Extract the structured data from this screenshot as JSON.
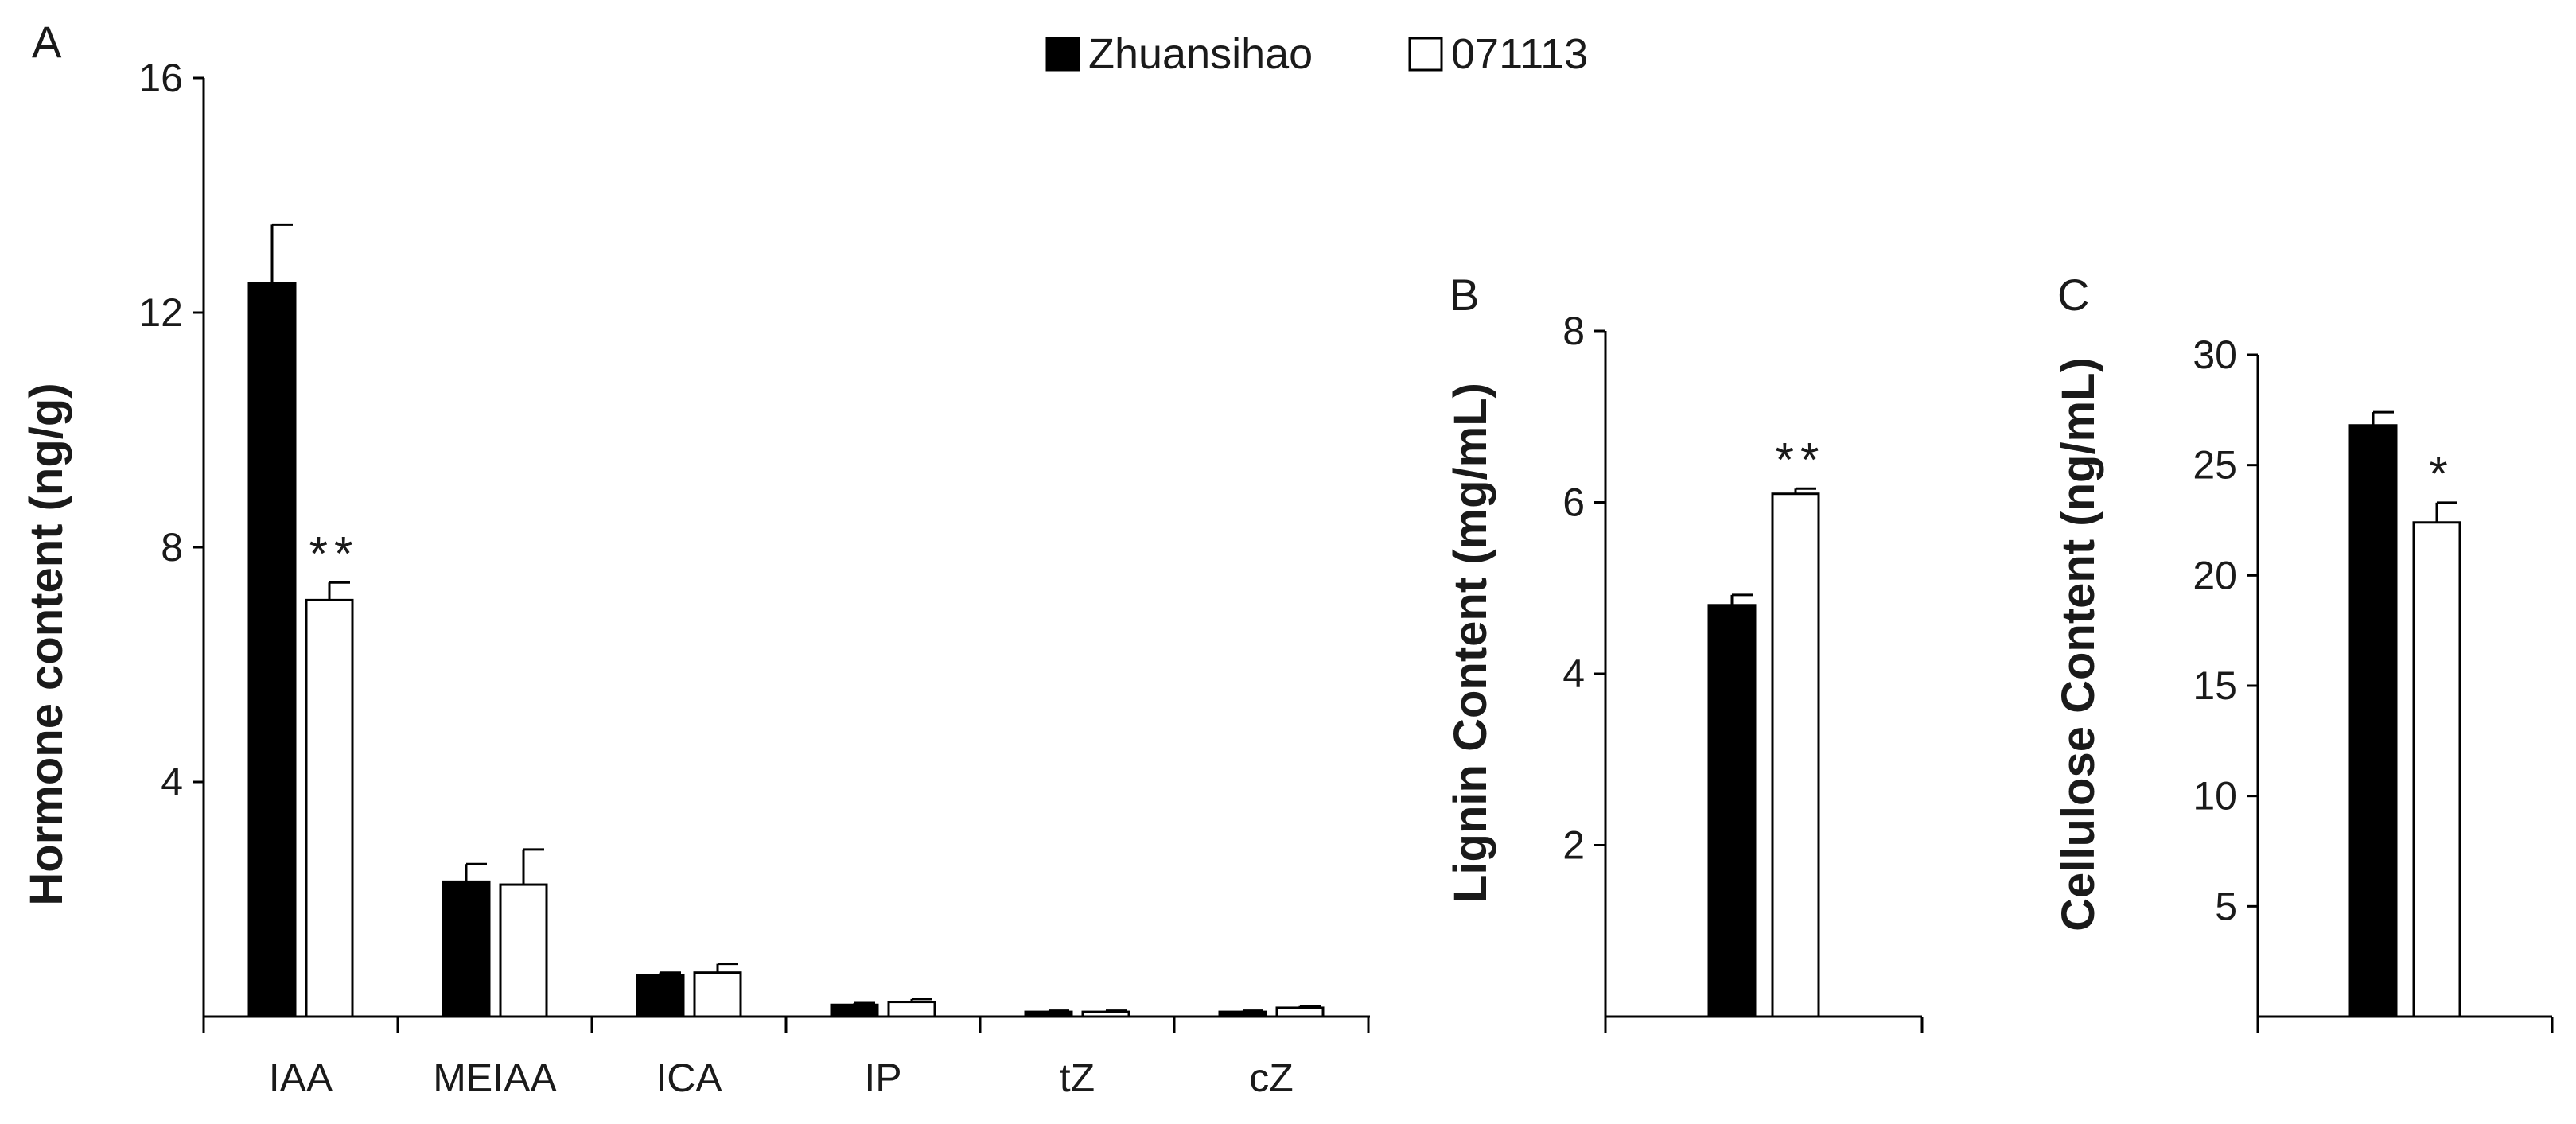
{
  "legend": {
    "items": [
      {
        "label": "Zhuansihao",
        "fill": "#000000"
      },
      {
        "label": "071113",
        "fill": "#ffffff"
      }
    ]
  },
  "colors": {
    "series1": "#000000",
    "series2": "#ffffff",
    "stroke": "#000000"
  },
  "chart_data": [
    {
      "panel": "A",
      "type": "bar",
      "ylabel": "Hormone content (ng/g)",
      "ylim": [
        0,
        16
      ],
      "yticks": [
        "4",
        "8",
        "12",
        "16"
      ],
      "categories": [
        "IAA",
        "MEIAA",
        "ICA",
        "IP",
        "tZ",
        "cZ"
      ],
      "series": [
        {
          "name": "Zhuansihao",
          "values": [
            12.5,
            2.3,
            0.7,
            0.2,
            0.08,
            0.08
          ],
          "errors": [
            1.0,
            0.3,
            0.05,
            0.03,
            0.02,
            0.02
          ]
        },
        {
          "name": "071113",
          "values": [
            7.1,
            2.25,
            0.75,
            0.25,
            0.08,
            0.15
          ],
          "errors": [
            0.3,
            0.6,
            0.15,
            0.05,
            0.02,
            0.03
          ]
        }
      ],
      "annotations": [
        {
          "category": "IAA",
          "series": "071113",
          "text": "**"
        }
      ]
    },
    {
      "panel": "B",
      "type": "bar",
      "ylabel": "Lignin Content (mg/mL)",
      "ylim": [
        0,
        8
      ],
      "yticks": [
        "2",
        "4",
        "6",
        "8"
      ],
      "categories": [
        ""
      ],
      "series": [
        {
          "name": "Zhuansihao",
          "values": [
            4.8
          ],
          "errors": [
            0.12
          ]
        },
        {
          "name": "071113",
          "values": [
            6.1
          ],
          "errors": [
            0.06
          ]
        }
      ],
      "annotations": [
        {
          "series": "071113",
          "text": "**"
        }
      ]
    },
    {
      "panel": "C",
      "type": "bar",
      "ylabel": "Cellulose Content (ng/mL)",
      "ylim": [
        0,
        30
      ],
      "yticks": [
        "5",
        "10",
        "15",
        "20",
        "25",
        "30"
      ],
      "categories": [
        ""
      ],
      "series": [
        {
          "name": "Zhuansihao",
          "values": [
            26.8
          ],
          "errors": [
            0.6
          ]
        },
        {
          "name": "071113",
          "values": [
            22.4
          ],
          "errors": [
            0.9
          ]
        }
      ],
      "annotations": [
        {
          "series": "071113",
          "text": "*"
        }
      ]
    }
  ]
}
